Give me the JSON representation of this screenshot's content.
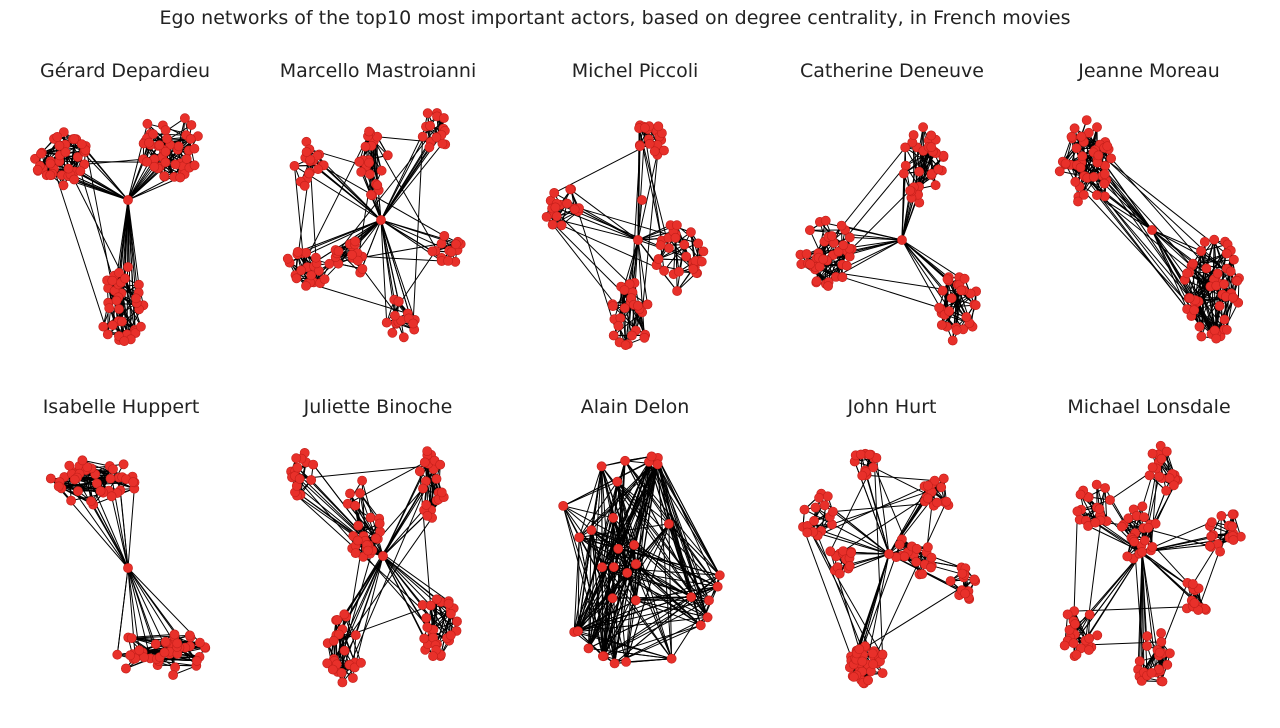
{
  "figure": {
    "title": "Ego networks of the top10 most important actors, based on degree centrality, in French movies"
  },
  "colors": {
    "node": "#e8302a",
    "node_stroke": "#c21f1a",
    "edge": "#000000"
  },
  "networks": [
    {
      "name": "Gérard Depardieu"
    },
    {
      "name": "Marcello Mastroianni"
    },
    {
      "name": "Michel Piccoli"
    },
    {
      "name": "Catherine Deneuve"
    },
    {
      "name": "Jeanne Moreau"
    },
    {
      "name": "Isabelle Huppert"
    },
    {
      "name": "Juliette Binoche"
    },
    {
      "name": "Alain Delon"
    },
    {
      "name": "John Hurt"
    },
    {
      "name": "Michael Lonsdale"
    }
  ]
}
